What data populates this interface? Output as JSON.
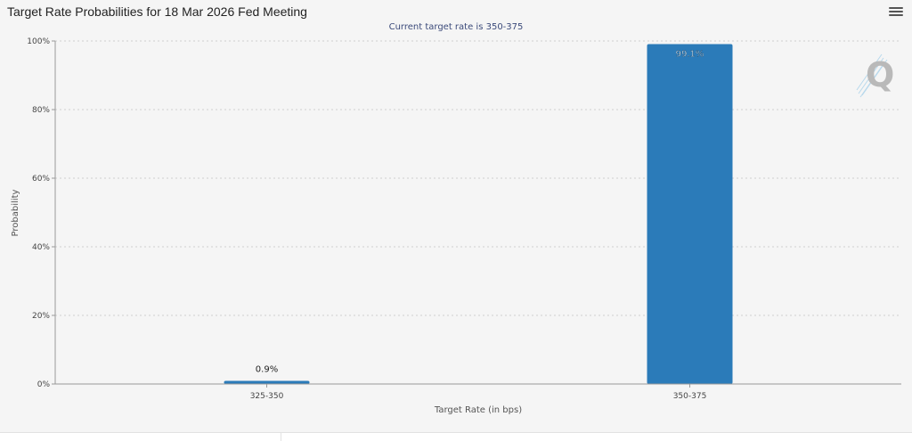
{
  "header": {
    "title": "Target Rate Probabilities for 18 Mar 2026 Fed Meeting",
    "menu_icon": "hamburger-menu-icon"
  },
  "watermark": {
    "icon": "q-logo-icon",
    "letter": "Q"
  },
  "chart_data": {
    "type": "bar",
    "title": "Target Rate Probabilities for 18 Mar 2026 Fed Meeting",
    "subtitle": "Current target rate is 350-375",
    "xlabel": "Target Rate (in bps)",
    "ylabel": "Probability",
    "categories": [
      "325-350",
      "350-375"
    ],
    "values": [
      0.9,
      99.1
    ],
    "data_labels": [
      "0.9%",
      "99.1%"
    ],
    "ylim": [
      0,
      100
    ],
    "yticks": [
      0,
      20,
      40,
      60,
      80,
      100
    ],
    "ytick_labels": [
      "0%",
      "20%",
      "40%",
      "60%",
      "80%",
      "100%"
    ],
    "grid": true,
    "legend": "none",
    "bar_color": "#2b7bb9"
  }
}
